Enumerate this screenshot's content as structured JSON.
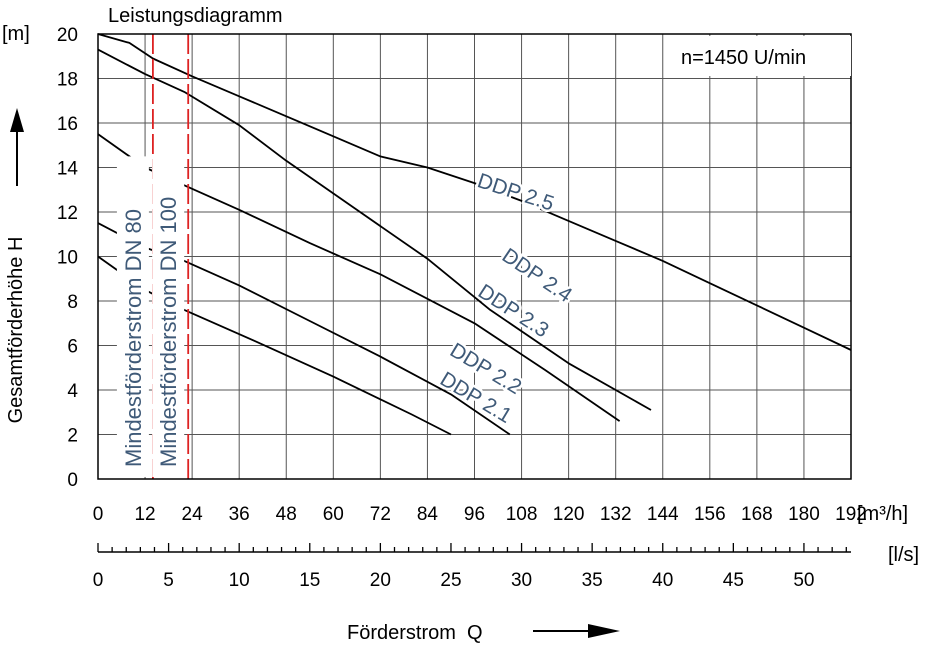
{
  "chart_data": {
    "type": "line",
    "title": "Leistungsdiagramm",
    "annotation": "n=1450 U/min",
    "xlabel": "Förderstrom  Q",
    "ylabel": "Gesamtförderhöhe  H",
    "x_unit": "[m³/h]",
    "x2_unit": "[l/s]",
    "y_unit": "[m]",
    "xlim": [
      0,
      192
    ],
    "ylim": [
      0,
      20
    ],
    "x_ticks": [
      "0",
      "12",
      "24",
      "36",
      "48",
      "60",
      "72",
      "84",
      "96",
      "108",
      "120",
      "132",
      "144",
      "156",
      "168",
      "180",
      "192"
    ],
    "x2_ticks": [
      "0",
      "5",
      "10",
      "15",
      "20",
      "25",
      "30",
      "35",
      "40",
      "45",
      "50"
    ],
    "y_ticks": [
      "0",
      "2",
      "4",
      "6",
      "8",
      "10",
      "12",
      "14",
      "16",
      "18",
      "20"
    ],
    "grid": true,
    "series": [
      {
        "name": "DDP 2.1",
        "x": [
          0,
          12,
          22,
          40,
          60,
          80,
          90
        ],
        "y": [
          10,
          8.5,
          7.6,
          6.2,
          4.6,
          2.9,
          2
        ]
      },
      {
        "name": "DDP 2.2",
        "x": [
          0,
          12,
          22,
          36,
          54,
          72,
          90,
          105
        ],
        "y": [
          11.5,
          10.4,
          9.8,
          8.7,
          7.1,
          5.5,
          3.8,
          2
        ]
      },
      {
        "name": "DDP 2.3",
        "x": [
          0,
          12,
          22,
          36,
          54,
          72,
          96,
          114,
          133
        ],
        "y": [
          15.5,
          14,
          13.2,
          12.1,
          10.6,
          9.2,
          7,
          4.9,
          2.6
        ]
      },
      {
        "name": "DDP 2.4",
        "x": [
          0,
          12,
          22,
          36,
          48,
          66,
          84,
          100,
          120,
          141
        ],
        "y": [
          19.3,
          18.2,
          17.4,
          15.9,
          14.3,
          12.1,
          9.9,
          7.6,
          5.2,
          3.1
        ]
      },
      {
        "name": "DDP 2.5",
        "x": [
          0,
          8,
          14,
          24,
          36,
          48,
          60,
          72,
          84,
          96,
          108,
          120,
          132,
          144,
          156,
          168,
          180,
          192
        ],
        "y": [
          20,
          19.6,
          18.9,
          18.1,
          17.2,
          16.3,
          15.4,
          14.5,
          14,
          13.3,
          12.5,
          11.6,
          10.7,
          9.8,
          8.8,
          7.8,
          6.8,
          5.8
        ]
      }
    ],
    "min_flow_lines": [
      {
        "label": "Mindestförderstrom DN 80",
        "x": 14
      },
      {
        "label": "Mindestförderstrom DN 100",
        "x": 23
      }
    ]
  }
}
